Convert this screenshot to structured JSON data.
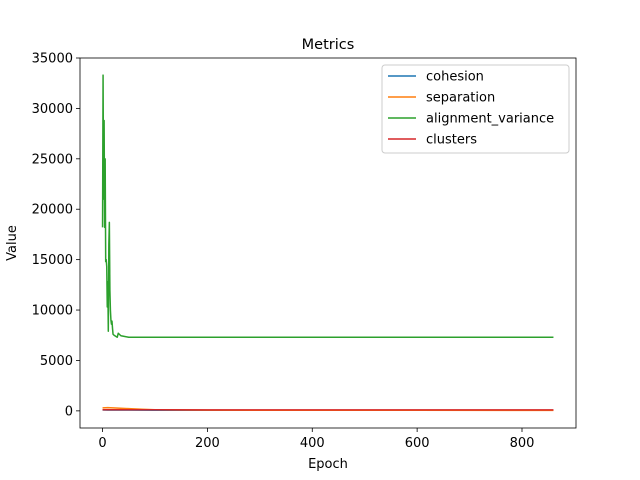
{
  "chart_data": {
    "type": "line",
    "title": "Metrics",
    "xlabel": "Epoch",
    "ylabel": "Value",
    "xlim": [
      -43,
      903
    ],
    "ylim": [
      -1700,
      35000
    ],
    "xticks": [
      0,
      200,
      400,
      600,
      800
    ],
    "yticks": [
      0,
      5000,
      10000,
      15000,
      20000,
      25000,
      30000,
      35000
    ],
    "grid": false,
    "legend_position": "top-right",
    "series": [
      {
        "name": "cohesion",
        "color": "#1f77b4",
        "x": [
          0,
          10,
          50,
          100,
          200,
          400,
          600,
          860
        ],
        "y": [
          80,
          75,
          70,
          65,
          60,
          60,
          60,
          60
        ]
      },
      {
        "name": "separation",
        "color": "#ff7f0e",
        "x": [
          0,
          10,
          25,
          50,
          75,
          100,
          200,
          400,
          600,
          860
        ],
        "y": [
          300,
          320,
          280,
          220,
          160,
          110,
          70,
          60,
          55,
          50
        ]
      },
      {
        "name": "alignment_variance",
        "color": "#2ca02c",
        "x": [
          0,
          1,
          2,
          3,
          4,
          5,
          6,
          7,
          8,
          9,
          10,
          11,
          12,
          13,
          14,
          15,
          16,
          17,
          18,
          19,
          20,
          22,
          25,
          28,
          30,
          35,
          40,
          50,
          60,
          100,
          200,
          400,
          600,
          860
        ],
        "y": [
          18200,
          33300,
          21000,
          28800,
          18200,
          25000,
          14800,
          15000,
          14300,
          10300,
          12800,
          7900,
          16500,
          18700,
          12000,
          10000,
          9000,
          8600,
          8900,
          8200,
          7600,
          7500,
          7400,
          7300,
          7700,
          7450,
          7400,
          7300,
          7300,
          7300,
          7300,
          7300,
          7300,
          7300
        ]
      },
      {
        "name": "clusters",
        "color": "#d62728",
        "x": [
          0,
          50,
          100,
          200,
          400,
          600,
          860
        ],
        "y": [
          110,
          110,
          105,
          100,
          100,
          100,
          100
        ]
      }
    ]
  }
}
